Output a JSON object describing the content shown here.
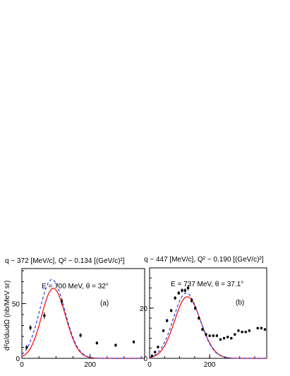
{
  "y_axis_label": "d²σ/dωdΩ (nb/MeV sr)",
  "chart_data": [
    {
      "type": "scatter",
      "title": "q ~ 372 [MeV/c], Q² ~ 0.134 [(GeV/c)²]",
      "annotation": "E = 700 MeV, θ = 32°",
      "panel_label": "(a)",
      "xlim": [
        0,
        360
      ],
      "ylim": [
        0,
        82
      ],
      "x_ticks": [
        0,
        200
      ],
      "y_ticks": [
        0,
        50
      ],
      "points": [
        {
          "x": 14,
          "y": 10,
          "err": 2
        },
        {
          "x": 25,
          "y": 28,
          "err": 2.5
        },
        {
          "x": 66,
          "y": 39,
          "err": 3
        },
        {
          "x": 117,
          "y": 52,
          "err": 3
        },
        {
          "x": 172,
          "y": 21,
          "err": 2
        },
        {
          "x": 220,
          "y": 14,
          "err": 1.5
        },
        {
          "x": 275,
          "y": 12,
          "err": 1.5
        },
        {
          "x": 328,
          "y": 15,
          "err": 1.5
        }
      ],
      "series": [
        {
          "color": "#ff0000",
          "dash": "solid",
          "peak_x": 92,
          "peak_y": 64,
          "width_left": 34,
          "width_right": 36
        },
        {
          "color": "#1f3fff",
          "dash": "dashed",
          "peak_x": 88,
          "peak_y": 72,
          "width_left": 36,
          "width_right": 38
        }
      ]
    },
    {
      "type": "scatter",
      "title": "q ~ 447 [MeV/c], Q² ~ 0.190 [(GeV/c)²]",
      "annotation": "E = 737 MeV, θ = 37.1°",
      "panel_label": "(b)",
      "xlim": [
        0,
        390
      ],
      "ylim": [
        0,
        36
      ],
      "x_ticks": [
        0,
        200
      ],
      "y_ticks": [
        0,
        20
      ],
      "points": [
        {
          "x": 8,
          "y": 1,
          "err": 0.4
        },
        {
          "x": 18,
          "y": 2.5,
          "err": 0.4
        },
        {
          "x": 28,
          "y": 4.5,
          "err": 0.5
        },
        {
          "x": 46,
          "y": 11,
          "err": 0.6
        },
        {
          "x": 58,
          "y": 15,
          "err": 0.7
        },
        {
          "x": 72,
          "y": 19,
          "err": 0.7
        },
        {
          "x": 85,
          "y": 24,
          "err": 0.8
        },
        {
          "x": 97,
          "y": 26,
          "err": 0.8
        },
        {
          "x": 108,
          "y": 27,
          "err": 0.8
        },
        {
          "x": 118,
          "y": 27,
          "err": 0.8
        },
        {
          "x": 128,
          "y": 28,
          "err": 0.9
        },
        {
          "x": 140,
          "y": 23,
          "err": 0.8
        },
        {
          "x": 152,
          "y": 20,
          "err": 0.8
        },
        {
          "x": 164,
          "y": 16,
          "err": 0.7
        },
        {
          "x": 176,
          "y": 11.5,
          "err": 0.6
        },
        {
          "x": 188,
          "y": 9.5,
          "err": 0.6
        },
        {
          "x": 200,
          "y": 9,
          "err": 0.5
        },
        {
          "x": 212,
          "y": 9,
          "err": 0.5
        },
        {
          "x": 224,
          "y": 9,
          "err": 0.5
        },
        {
          "x": 236,
          "y": 7.5,
          "err": 0.5
        },
        {
          "x": 248,
          "y": 8,
          "err": 0.5
        },
        {
          "x": 260,
          "y": 8.5,
          "err": 0.5
        },
        {
          "x": 272,
          "y": 8,
          "err": 0.5
        },
        {
          "x": 284,
          "y": 9.5,
          "err": 0.5
        },
        {
          "x": 296,
          "y": 11,
          "err": 0.5
        },
        {
          "x": 308,
          "y": 10.5,
          "err": 0.5
        },
        {
          "x": 320,
          "y": 10.5,
          "err": 0.5
        },
        {
          "x": 332,
          "y": 11,
          "err": 0.5
        },
        {
          "x": 360,
          "y": 12,
          "err": 0.5
        },
        {
          "x": 372,
          "y": 12,
          "err": 0.5
        },
        {
          "x": 384,
          "y": 11.5,
          "err": 0.5
        }
      ],
      "series": [
        {
          "color": "#ff0000",
          "dash": "solid",
          "peak_x": 125,
          "peak_y": 24.5,
          "width_left": 42,
          "width_right": 45
        },
        {
          "color": "#1f3fff",
          "dash": "dashed",
          "peak_x": 122,
          "peak_y": 26,
          "width_left": 43,
          "width_right": 45
        }
      ]
    }
  ]
}
